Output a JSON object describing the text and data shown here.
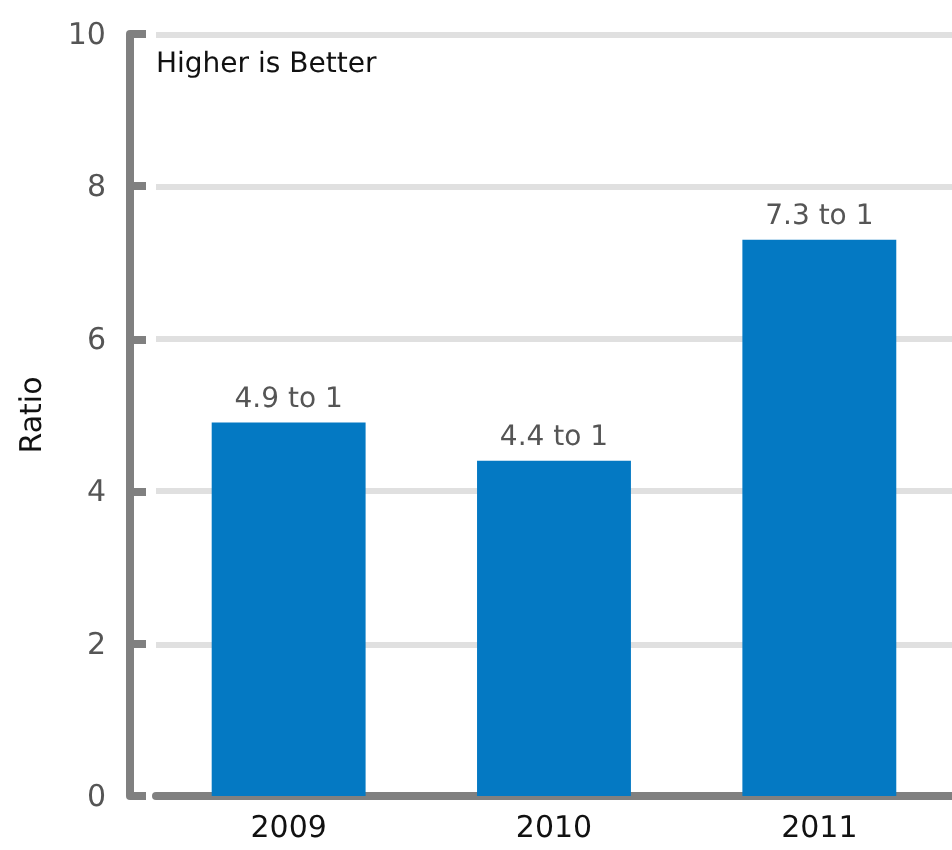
{
  "chart_data": {
    "type": "bar",
    "ylabel": "Ratio",
    "categories": [
      "2009",
      "2010",
      "2011"
    ],
    "values": [
      4.9,
      4.4,
      7.3
    ],
    "value_labels": [
      "4.9 to 1",
      "4.4 to 1",
      "7.3 to 1"
    ],
    "color": "#0479c3",
    "ylim": [
      0,
      10
    ],
    "yticks": [
      0,
      2,
      4,
      6,
      8,
      10
    ],
    "grid": "y",
    "annotations": [
      "Higher is Better"
    ]
  }
}
